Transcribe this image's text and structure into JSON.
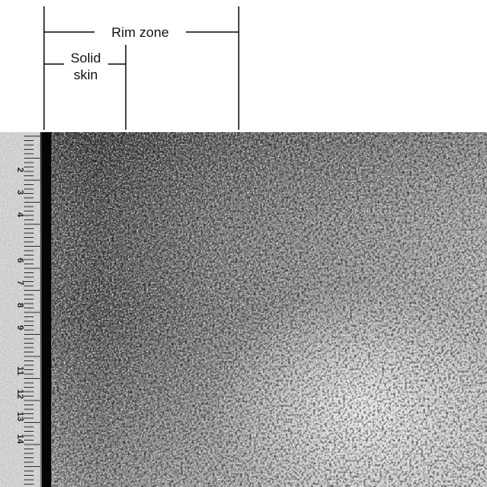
{
  "annotations": {
    "rim_zone": "Rim zone",
    "solid_skin": [
      "Solid",
      "skin"
    ]
  },
  "ruler": {
    "labels": [
      "2",
      "3",
      "4",
      "6",
      "7",
      "8",
      "9",
      "11",
      "12",
      "13",
      "14"
    ]
  }
}
